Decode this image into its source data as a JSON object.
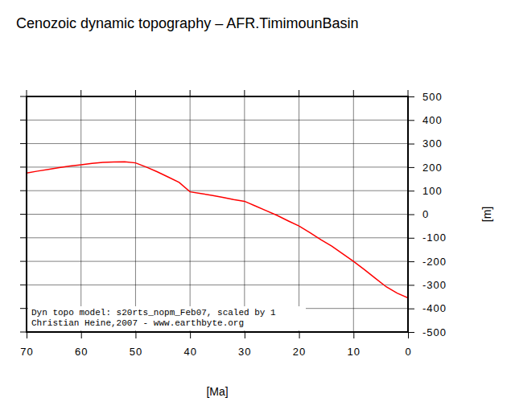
{
  "chart_data": {
    "type": "line",
    "title": "Cenozoic dynamic topography – AFR.TimimounBasin",
    "xlabel": "[Ma]",
    "ylabel": "[m]",
    "annotations": [
      "Dyn topo model: s20rts_nopm_Feb07, scaled by 1",
      "Christian Heine,2007 - www.earthbyte.org"
    ],
    "x": [
      70,
      68,
      66,
      64,
      62,
      60,
      58,
      56,
      54,
      52,
      50,
      48,
      46,
      44,
      42,
      40,
      38,
      36,
      34,
      32,
      30,
      28,
      26,
      24,
      22,
      20,
      18,
      16,
      14,
      12,
      10,
      8,
      6,
      4,
      2,
      0
    ],
    "values": [
      175,
      183,
      190,
      198,
      205,
      210,
      216,
      220,
      222,
      223,
      218,
      200,
      180,
      158,
      135,
      95,
      88,
      80,
      72,
      62,
      55,
      35,
      15,
      -5,
      -28,
      -50,
      -78,
      -108,
      -135,
      -168,
      -200,
      -235,
      -272,
      -308,
      -335,
      -355
    ],
    "color": "#ff0000",
    "xlim": [
      70,
      0
    ],
    "xticks": [
      70,
      60,
      50,
      40,
      30,
      20,
      10,
      0
    ],
    "ylim": [
      -500,
      500
    ],
    "yticks": [
      -500,
      -400,
      -300,
      -200,
      -100,
      0,
      100,
      200,
      300,
      400,
      500
    ],
    "grid": true
  }
}
